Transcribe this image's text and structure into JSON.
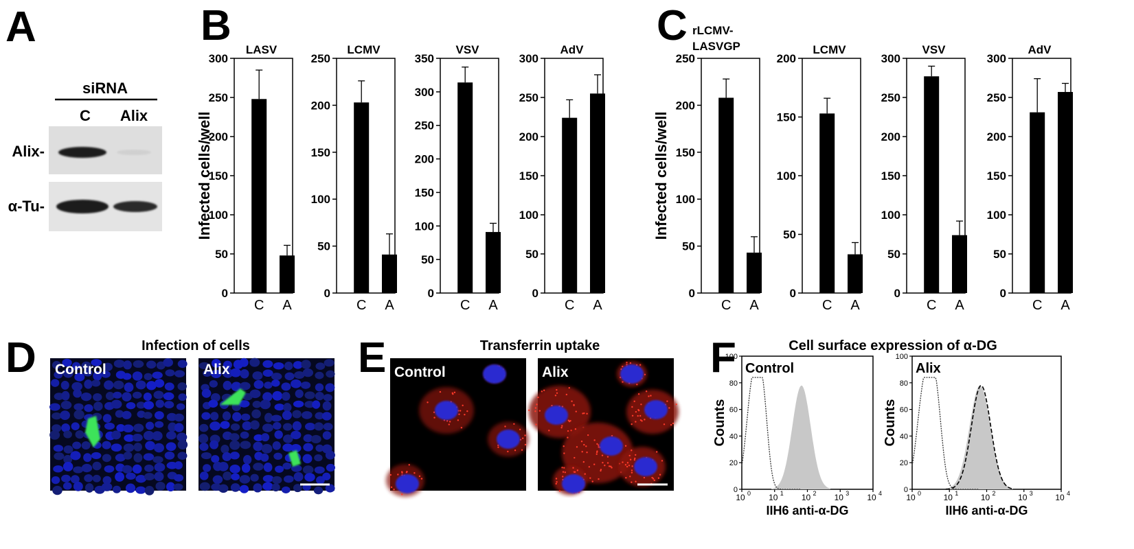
{
  "panel_letters": {
    "a": "A",
    "b": "B",
    "c": "C",
    "d": "D",
    "e": "E",
    "f": "F"
  },
  "western": {
    "header": "siRNA",
    "lanes": [
      "C",
      "Alix"
    ],
    "rows": [
      {
        "label": "Alix-"
      },
      {
        "label": "α-Tu-"
      }
    ]
  },
  "ylabel": "Infected cells/well",
  "chart_data": [
    {
      "type": "bar",
      "panel": "B",
      "title": "LASV",
      "categories": [
        "C",
        "A"
      ],
      "values": [
        248,
        48
      ],
      "errors": [
        37,
        13
      ],
      "ylim": [
        0,
        300
      ],
      "yticks": [
        0,
        50,
        100,
        150,
        200,
        250,
        300
      ]
    },
    {
      "type": "bar",
      "panel": "B",
      "title": "LCMV",
      "categories": [
        "C",
        "A"
      ],
      "values": [
        203,
        41
      ],
      "errors": [
        23,
        22
      ],
      "ylim": [
        0,
        250
      ],
      "yticks": [
        0,
        50,
        100,
        150,
        200,
        250
      ]
    },
    {
      "type": "bar",
      "panel": "B",
      "title": "VSV",
      "categories": [
        "C",
        "A"
      ],
      "values": [
        314,
        91
      ],
      "errors": [
        23,
        13
      ],
      "ylim": [
        0,
        350
      ],
      "yticks": [
        0,
        50,
        100,
        150,
        200,
        250,
        300,
        350
      ]
    },
    {
      "type": "bar",
      "panel": "B",
      "title": "AdV",
      "categories": [
        "C",
        "A"
      ],
      "values": [
        224,
        255
      ],
      "errors": [
        23,
        24
      ],
      "ylim": [
        0,
        300
      ],
      "yticks": [
        0,
        50,
        100,
        150,
        200,
        250,
        300
      ]
    },
    {
      "type": "bar",
      "panel": "C",
      "title": "rLCMV-\nLASVGP",
      "categories": [
        "C",
        "A"
      ],
      "values": [
        208,
        43
      ],
      "errors": [
        20,
        17
      ],
      "ylim": [
        0,
        250
      ],
      "yticks": [
        0,
        50,
        100,
        150,
        200,
        250
      ]
    },
    {
      "type": "bar",
      "panel": "C",
      "title": "LCMV",
      "categories": [
        "C",
        "A"
      ],
      "values": [
        153,
        33
      ],
      "errors": [
        13,
        10
      ],
      "ylim": [
        0,
        200
      ],
      "yticks": [
        0,
        50,
        100,
        150,
        200
      ]
    },
    {
      "type": "bar",
      "panel": "C",
      "title": "VSV",
      "categories": [
        "C",
        "A"
      ],
      "values": [
        277,
        74
      ],
      "errors": [
        13,
        18
      ],
      "ylim": [
        0,
        300
      ],
      "yticks": [
        0,
        50,
        100,
        150,
        200,
        250,
        300
      ]
    },
    {
      "type": "bar",
      "panel": "C",
      "title": "AdV",
      "categories": [
        "C",
        "A"
      ],
      "values": [
        231,
        257
      ],
      "errors": [
        43,
        11
      ],
      "ylim": [
        0,
        300
      ],
      "yticks": [
        0,
        50,
        100,
        150,
        200,
        250,
        300
      ]
    }
  ],
  "panel_d": {
    "title": "Infection of cells",
    "images": [
      "Control",
      "Alix"
    ]
  },
  "panel_e": {
    "title": "Transferrin uptake",
    "images": [
      "Control",
      "Alix"
    ]
  },
  "panel_f": {
    "title": "Cell surface expression of α-DG",
    "ylabel": "Counts",
    "xlabel": "IIH6 anti-α-DG",
    "yticks": [
      "0",
      "20",
      "40",
      "60",
      "80",
      "100"
    ],
    "xticks": [
      {
        "b": "10",
        "e": "0"
      },
      {
        "b": "10",
        "e": "1"
      },
      {
        "b": "10",
        "e": "2"
      },
      {
        "b": "10",
        "e": "3"
      },
      {
        "b": "10",
        "e": "4"
      }
    ],
    "plots": [
      "Control",
      "Alix"
    ]
  },
  "colors": {
    "bar": "#000000",
    "blot_bg": "#dcdcdc",
    "band": "#2a2a2a",
    "nuclei": "#1a2aa8",
    "green": "#3ee35a",
    "red": "#e0241c",
    "histogram_fill": "#c8c8c8"
  }
}
